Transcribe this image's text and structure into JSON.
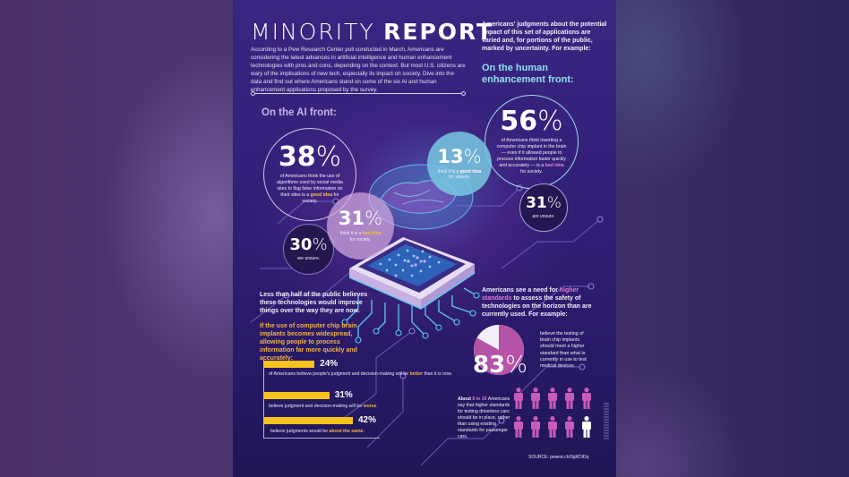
{
  "title": {
    "thin": "MINORITY",
    "bold": "REPORT"
  },
  "intro": "According to a Pew Research Center poll conducted in March, Americans are considering the latest advances in artificial intelligence and human enhancement technologies with pros and cons, depending on the context. But most U.S. citizens are wary of the implications of new tech, especially its impact on society. Dive into the data and find out where Americans stand on some of the six AI and human enhancement applications proposed by the survey.",
  "right_intro": "Americans' judgments about the potential impact of this set of applications are varied and, for portions of the public, marked by uncertainty. For example:",
  "headings": {
    "human": "On the human enhancement front:",
    "ai": "On the AI front:"
  },
  "ai_front": {
    "good": {
      "pct": "38",
      "caption_pre": "of Americans think the use of algorithms used by social media sites to flag false information on their sites is a ",
      "caption_hl": "good idea",
      "caption_post": " for society."
    },
    "bad": {
      "pct": "31",
      "caption_pre": "think it is a ",
      "caption_hl": "bad idea",
      "caption_post": " for society."
    },
    "unsure": {
      "pct": "30",
      "caption": "are unsure."
    }
  },
  "human_front": {
    "bad": {
      "pct": "56",
      "caption_pre": "of Americans think inserting a computer chip implant in the brain — even if it allowed people to process information faster quickly and accurately — is a ",
      "caption_hl": "bad idea",
      "caption_post": " for society."
    },
    "good": {
      "pct": "13",
      "caption_pre": "think it is a ",
      "caption_hl": "good idea",
      "caption_post": " for society."
    },
    "unsure": {
      "pct": "31",
      "caption": "are unsure."
    }
  },
  "percent_sign": "%",
  "improve": {
    "lead": "Less than half of the public believes these technologies would improve things over the way they are now.",
    "condition": "If the use of computer chip brain implants becomes widespread, allowing people to process information far more quickly and accurately:",
    "bars": [
      {
        "value": 24,
        "pct": "24%",
        "caption_pre": "of Americans believe people's judgment and decision-making will be ",
        "caption_hl": "better",
        "caption_post": " than it is now."
      },
      {
        "value": 31,
        "pct": "31%",
        "caption_pre": "believe judgment and decision-making will be ",
        "caption_hl": "worse",
        "caption_post": "."
      },
      {
        "value": 42,
        "pct": "42%",
        "caption_pre": "believe judgments would be ",
        "caption_hl": "about the same",
        "caption_post": "."
      }
    ]
  },
  "standards": {
    "lead_pre": "Americans see a need for ",
    "lead_hl": "higher standards",
    "lead_post": " to assess the safety of technologies on the horizon than are currently used. For example:",
    "brain_chip": {
      "value": 83,
      "pct": "83",
      "caption": "believe the testing of brain chip implants should meet a higher standard than what is currently in use to test medical devices."
    },
    "driverless": {
      "lead": "About ",
      "hl": "9 in 10",
      "caption": " Americans say that higher standards for testing driverless cars should be in place, rather than using existing standards for passenger cars.",
      "filled": 9,
      "total": 10
    }
  },
  "source": "SOURCE: pewrsr.ch/3gRDiDq",
  "colors": {
    "cyan": "#8fe0ef",
    "lavender": "#c9b2e8",
    "gold": "#f5c21e",
    "pink": "#c85cb8",
    "pink_text": "#e07ad8"
  }
}
